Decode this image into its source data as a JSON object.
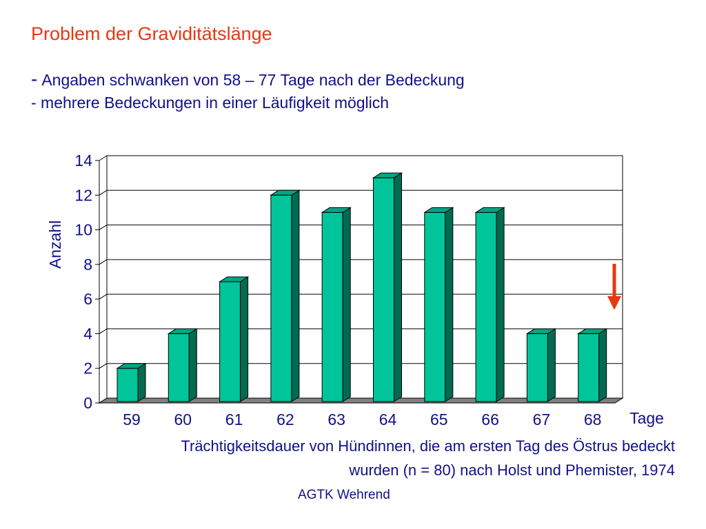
{
  "slide": {
    "title": "Problem der Graviditätslänge",
    "bullet1_dash": "-",
    "bullet1": "Angaben schwanken von 58 – 77 Tage nach der Bedeckung",
    "bullet2": "- mehrere Bedeckungen in einer Läufigkeit möglich",
    "caption_line1": "Trächtigkeitsdauer von Hündinnen, die am ersten Tag des Östrus bedeckt",
    "caption_line2": "wurden (n = 80) nach Holst und Phemister, 1974",
    "credit": "AGTK Wehrend"
  },
  "chart_data": {
    "type": "bar",
    "categories": [
      "59",
      "60",
      "61",
      "62",
      "63",
      "64",
      "65",
      "66",
      "67",
      "68"
    ],
    "values": [
      2,
      4,
      7,
      12,
      11,
      13,
      11,
      11,
      4,
      4
    ],
    "xlabel": "Tage",
    "ylabel": "Anzahl",
    "ylim": [
      0,
      14
    ],
    "yticks": [
      "0",
      "2",
      "4",
      "6",
      "8",
      "10",
      "12",
      "14"
    ],
    "grid": true,
    "legend": "none",
    "style": "3d-bars",
    "annotation": "red down arrow to the right of category 68",
    "colors": {
      "bar_front": "#00c49a",
      "bar_side": "#006b52",
      "bar_top": "#00a582",
      "floor": "#808080",
      "arrow": "#e8380d",
      "text": "#10108a"
    }
  }
}
